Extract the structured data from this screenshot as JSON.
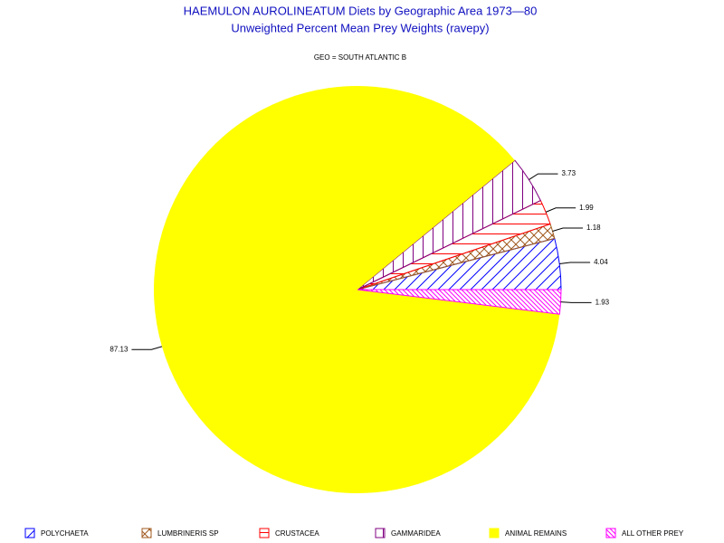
{
  "chart_data": {
    "type": "pie",
    "title": "HAEMULON AUROLINEATUM Diets by Geographic Area 1973—80",
    "subtitle": "Unweighted Percent Mean Prey Weights (ravepy)",
    "annotation": "GEO = SOUTH ATLANTIC B",
    "categories": [
      "POLYCHAETA",
      "LUMBRINERIS SP",
      "CRUSTACEA",
      "GAMMARIDEA",
      "ANIMAL REMAINS",
      "ALL OTHER PREY"
    ],
    "values": [
      4.04,
      1.18,
      1.99,
      3.73,
      87.13,
      1.93
    ],
    "colors": [
      "#0000ff",
      "#a05a1e",
      "#ff0000",
      "#800080",
      "#ffff00",
      "#ff00ff"
    ],
    "patterns": [
      "right",
      "cross",
      "horizontal",
      "vertical",
      "solid",
      "left"
    ]
  }
}
